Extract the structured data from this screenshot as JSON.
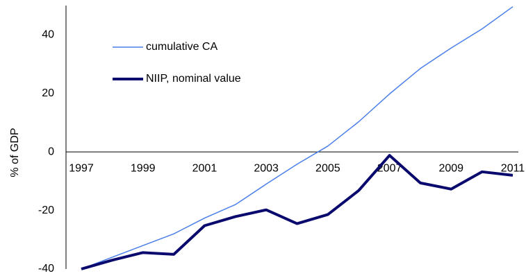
{
  "chart_data": {
    "type": "line",
    "y_label": "% of GDP",
    "categories": [
      "1997",
      null,
      "1999",
      null,
      "2001",
      null,
      "2003",
      null,
      "2005",
      null,
      "2007",
      null,
      "2009",
      null,
      "2011"
    ],
    "series": [
      {
        "name": "cumulative CA",
        "color": "#4a7fe8",
        "values": [
          -40,
          -36,
          -32,
          -28,
          -22.6,
          -18,
          -11,
          -4.2,
          2,
          10.3,
          19.8,
          28.5,
          35.5,
          42,
          49.6
        ]
      },
      {
        "name": "NIIP, nominal value",
        "color": "#0a0a6e",
        "values": [
          -40,
          -37,
          -34.4,
          -35,
          -25.2,
          -22.1,
          -19.8,
          -24.5,
          -21.4,
          -13.2,
          -1.2,
          -10.6,
          -12.7,
          -6.8,
          -8
        ]
      }
    ],
    "ylim": [
      -40,
      50
    ],
    "yticks": [
      -40,
      -20,
      0,
      20,
      40
    ],
    "grid": false,
    "legend": "upper-left"
  }
}
